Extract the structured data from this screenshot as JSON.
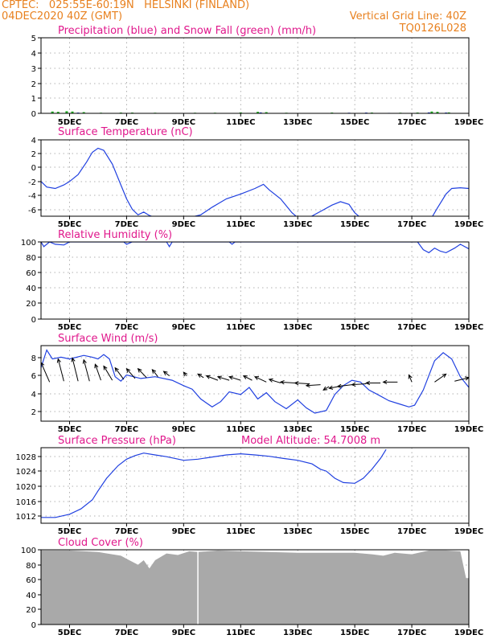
{
  "header": {
    "line1_left": "CPTEC:   025:55E-60:19N   HELSINKI (FINLAND)",
    "line2_left": "04DEC2020 40Z (GMT)",
    "line2_right": "Vertical Grid Line: 40Z",
    "line3_right": "TQ0126L028"
  },
  "colors": {
    "header": "#e8801e",
    "title": "#e0188c",
    "line": "#2040e0",
    "snow": "#20b020",
    "cloud": "#a9a9a9",
    "grid": "#999999",
    "arrow": "#000000"
  },
  "x_tick_labels": [
    "5DEC",
    "7DEC",
    "9DEC",
    "11DEC",
    "13DEC",
    "15DEC",
    "17DEC",
    "19DEC"
  ],
  "chart_data": [
    {
      "type": "bar",
      "title": "Precipitation (blue) and Snow Fall (green) (mm/h)",
      "x_day_range": [
        4,
        19
      ],
      "ylim": [
        0,
        5
      ],
      "yticks": [
        "5",
        "4",
        "3",
        "2",
        "1",
        "0"
      ],
      "series": [
        {
          "name": "Precipitation",
          "color": "#2040e0",
          "values": [
            [
              4.4,
              0.08
            ],
            [
              4.9,
              0.1
            ],
            [
              5.3,
              0.05
            ],
            [
              10.5,
              0.02
            ],
            [
              11.7,
              0.06
            ],
            [
              14.8,
              0.04
            ],
            [
              15.4,
              0.05
            ],
            [
              16.2,
              0.03
            ],
            [
              17.6,
              0.06
            ],
            [
              18.2,
              0.05
            ]
          ]
        },
        {
          "name": "Snow Fall",
          "color": "#20b020",
          "values": [
            [
              4.4,
              0.12
            ],
            [
              4.6,
              0.1
            ],
            [
              4.9,
              0.14
            ],
            [
              5.1,
              0.12
            ],
            [
              5.5,
              0.08
            ],
            [
              6.1,
              0.04
            ],
            [
              6.8,
              0.05
            ],
            [
              7.2,
              0.05
            ],
            [
              8.0,
              0.04
            ],
            [
              9.4,
              0.04
            ],
            [
              10.1,
              0.04
            ],
            [
              11.0,
              0.06
            ],
            [
              11.6,
              0.1
            ],
            [
              11.9,
              0.08
            ],
            [
              12.6,
              0.04
            ],
            [
              14.2,
              0.05
            ],
            [
              15.6,
              0.05
            ],
            [
              16.6,
              0.04
            ],
            [
              17.2,
              0.05
            ],
            [
              17.7,
              0.12
            ],
            [
              17.9,
              0.1
            ],
            [
              18.3,
              0.06
            ]
          ]
        }
      ]
    },
    {
      "type": "line",
      "title": "Surface Temperature (nC)",
      "x_day_range": [
        4,
        19
      ],
      "ylim": [
        -7,
        4
      ],
      "yticks": [
        "4",
        "2",
        "0",
        "-2",
        "-4",
        "-6"
      ],
      "series": [
        {
          "name": "Surface Temperature",
          "color": "#2040e0",
          "points": [
            [
              4.0,
              -2.0
            ],
            [
              4.2,
              -2.8
            ],
            [
              4.5,
              -3.0
            ],
            [
              4.8,
              -2.5
            ],
            [
              5.0,
              -2.0
            ],
            [
              5.3,
              -1.0
            ],
            [
              5.6,
              0.8
            ],
            [
              5.8,
              2.2
            ],
            [
              6.0,
              2.8
            ],
            [
              6.2,
              2.5
            ],
            [
              6.5,
              0.5
            ],
            [
              6.8,
              -2.5
            ],
            [
              7.0,
              -4.5
            ],
            [
              7.2,
              -6.0
            ],
            [
              7.4,
              -6.8
            ],
            [
              7.6,
              -6.4
            ],
            [
              7.8,
              -6.9
            ],
            [
              8.0,
              -7.2
            ],
            [
              9.2,
              -7.2
            ],
            [
              9.6,
              -6.8
            ],
            [
              10.0,
              -5.7
            ],
            [
              10.5,
              -4.5
            ],
            [
              11.0,
              -3.8
            ],
            [
              11.5,
              -3.0
            ],
            [
              11.8,
              -2.4
            ],
            [
              12.0,
              -3.2
            ],
            [
              12.4,
              -4.5
            ],
            [
              12.8,
              -6.5
            ],
            [
              13.0,
              -7.2
            ],
            [
              13.4,
              -7.2
            ],
            [
              13.8,
              -6.3
            ],
            [
              14.2,
              -5.4
            ],
            [
              14.5,
              -4.9
            ],
            [
              14.8,
              -5.3
            ],
            [
              15.0,
              -6.5
            ],
            [
              15.2,
              -7.2
            ],
            [
              17.7,
              -7.2
            ],
            [
              17.9,
              -5.8
            ],
            [
              18.2,
              -3.8
            ],
            [
              18.4,
              -3.0
            ],
            [
              18.7,
              -2.9
            ],
            [
              19.0,
              -3.0
            ]
          ]
        }
      ]
    },
    {
      "type": "line",
      "title": "Relative Humidity (%)",
      "x_day_range": [
        4,
        19
      ],
      "ylim": [
        0,
        100
      ],
      "yticks": [
        "100",
        "80",
        "60",
        "40",
        "20",
        "0"
      ],
      "series": [
        {
          "name": "Relative Humidity",
          "color": "#2040e0",
          "points": [
            [
              4.0,
              100
            ],
            [
              4.1,
              94
            ],
            [
              4.3,
              100
            ],
            [
              4.5,
              97
            ],
            [
              4.8,
              96
            ],
            [
              5.0,
              100
            ],
            [
              6.9,
              100
            ],
            [
              7.0,
              97
            ],
            [
              7.2,
              100
            ],
            [
              8.4,
              100
            ],
            [
              8.5,
              94
            ],
            [
              8.6,
              100
            ],
            [
              10.6,
              100
            ],
            [
              10.7,
              97
            ],
            [
              10.8,
              100
            ],
            [
              17.2,
              100
            ],
            [
              17.4,
              90
            ],
            [
              17.6,
              86
            ],
            [
              17.8,
              92
            ],
            [
              18.0,
              88
            ],
            [
              18.2,
              86
            ],
            [
              18.5,
              92
            ],
            [
              18.7,
              97
            ],
            [
              19.0,
              91
            ]
          ]
        }
      ]
    },
    {
      "type": "line",
      "title": "Surface Wind (m/s)",
      "x_day_range": [
        4,
        19
      ],
      "ylim": [
        1,
        9.5
      ],
      "yticks": [
        "8",
        "6",
        "4",
        "2"
      ],
      "series": [
        {
          "name": "Surface Wind",
          "color": "#2040e0",
          "points": [
            [
              4.0,
              7.0
            ],
            [
              4.2,
              9.0
            ],
            [
              4.4,
              8.0
            ],
            [
              4.7,
              8.2
            ],
            [
              5.0,
              8.0
            ],
            [
              5.5,
              8.4
            ],
            [
              5.8,
              8.2
            ],
            [
              6.0,
              8.0
            ],
            [
              6.2,
              8.5
            ],
            [
              6.4,
              8.0
            ],
            [
              6.6,
              6.0
            ],
            [
              6.8,
              5.5
            ],
            [
              7.0,
              6.2
            ],
            [
              7.5,
              5.8
            ],
            [
              8.0,
              6.0
            ],
            [
              8.6,
              5.6
            ],
            [
              9.0,
              5.0
            ],
            [
              9.3,
              4.6
            ],
            [
              9.6,
              3.5
            ],
            [
              10.0,
              2.6
            ],
            [
              10.3,
              3.2
            ],
            [
              10.6,
              4.3
            ],
            [
              11.0,
              4.0
            ],
            [
              11.3,
              4.8
            ],
            [
              11.6,
              3.5
            ],
            [
              11.9,
              4.2
            ],
            [
              12.2,
              3.2
            ],
            [
              12.6,
              2.4
            ],
            [
              13.0,
              3.4
            ],
            [
              13.3,
              2.5
            ],
            [
              13.6,
              1.9
            ],
            [
              14.0,
              2.2
            ],
            [
              14.3,
              4.0
            ],
            [
              14.6,
              5.0
            ],
            [
              14.9,
              5.6
            ],
            [
              15.2,
              5.4
            ],
            [
              15.5,
              4.5
            ],
            [
              15.8,
              4.0
            ],
            [
              16.2,
              3.3
            ],
            [
              16.6,
              2.9
            ],
            [
              16.9,
              2.6
            ],
            [
              17.1,
              2.8
            ],
            [
              17.4,
              4.5
            ],
            [
              17.8,
              7.8
            ],
            [
              18.1,
              8.7
            ],
            [
              18.4,
              8.0
            ],
            [
              18.7,
              6.0
            ],
            [
              19.0,
              4.8
            ]
          ]
        }
      ],
      "wind_arrows": [
        [
          4.3,
          5.4,
          4.0,
          7.6
        ],
        [
          4.8,
          5.5,
          4.6,
          8.0
        ],
        [
          5.3,
          5.5,
          5.1,
          8.1
        ],
        [
          5.7,
          5.5,
          5.5,
          7.9
        ],
        [
          6.1,
          5.6,
          5.9,
          7.4
        ],
        [
          6.5,
          5.6,
          6.2,
          7.2
        ],
        [
          6.9,
          5.7,
          6.6,
          7.0
        ],
        [
          7.3,
          5.8,
          7.0,
          6.9
        ],
        [
          7.7,
          5.9,
          7.4,
          6.9
        ],
        [
          8.1,
          6.0,
          7.9,
          6.8
        ],
        [
          8.5,
          6.1,
          8.3,
          6.6
        ],
        [
          9.1,
          6.1,
          9.0,
          6.5
        ],
        [
          9.7,
          5.9,
          9.5,
          6.3
        ],
        [
          10.2,
          5.6,
          9.8,
          6.1
        ],
        [
          10.6,
          5.6,
          10.2,
          6.0
        ],
        [
          11.0,
          5.6,
          10.6,
          6.0
        ],
        [
          11.4,
          5.6,
          11.1,
          6.1
        ],
        [
          11.9,
          5.4,
          11.5,
          6.0
        ],
        [
          12.4,
          5.3,
          12.0,
          5.7
        ],
        [
          12.9,
          5.3,
          12.4,
          5.4
        ],
        [
          13.4,
          5.2,
          12.9,
          5.3
        ],
        [
          13.8,
          5.1,
          13.3,
          5.0
        ],
        [
          14.1,
          4.9,
          13.9,
          4.5
        ],
        [
          14.6,
          5.0,
          14.1,
          4.7
        ],
        [
          14.9,
          5.1,
          14.4,
          4.9
        ],
        [
          15.4,
          5.2,
          14.9,
          5.1
        ],
        [
          15.9,
          5.3,
          15.4,
          5.3
        ],
        [
          16.5,
          5.4,
          16.0,
          5.4
        ],
        [
          17.0,
          5.4,
          16.9,
          6.2
        ],
        [
          17.8,
          5.4,
          18.2,
          6.3
        ],
        [
          18.5,
          5.5,
          19.0,
          5.9
        ]
      ]
    },
    {
      "type": "line",
      "title": "Surface Pressure (hPa)",
      "subtitle": "Model Altitude: 54.7008 m",
      "x_day_range": [
        4,
        19
      ],
      "ylim": [
        1010,
        1031
      ],
      "yticks": [
        "1028",
        "1024",
        "1020",
        "1016",
        "1012"
      ],
      "series": [
        {
          "name": "Surface Pressure",
          "color": "#2040e0",
          "points": [
            [
              4.0,
              1011.6
            ],
            [
              4.5,
              1011.6
            ],
            [
              5.0,
              1012.5
            ],
            [
              5.4,
              1014.0
            ],
            [
              5.8,
              1016.5
            ],
            [
              6.0,
              1019.0
            ],
            [
              6.3,
              1022.5
            ],
            [
              6.7,
              1026.0
            ],
            [
              7.0,
              1027.8
            ],
            [
              7.3,
              1028.8
            ],
            [
              7.6,
              1029.5
            ],
            [
              8.0,
              1029.0
            ],
            [
              8.4,
              1028.5
            ],
            [
              8.7,
              1028.0
            ],
            [
              9.0,
              1027.5
            ],
            [
              9.5,
              1027.8
            ],
            [
              10.0,
              1028.4
            ],
            [
              10.5,
              1029.0
            ],
            [
              11.0,
              1029.3
            ],
            [
              11.5,
              1029.0
            ],
            [
              12.0,
              1028.6
            ],
            [
              12.5,
              1028.0
            ],
            [
              13.0,
              1027.5
            ],
            [
              13.5,
              1026.5
            ],
            [
              13.8,
              1025.0
            ],
            [
              14.0,
              1024.5
            ],
            [
              14.3,
              1022.5
            ],
            [
              14.6,
              1021.3
            ],
            [
              15.0,
              1021.1
            ],
            [
              15.3,
              1022.5
            ],
            [
              15.6,
              1025.0
            ],
            [
              15.9,
              1028.0
            ],
            [
              16.1,
              1030.5
            ]
          ]
        }
      ]
    },
    {
      "type": "area",
      "title": "Cloud Cover (%)",
      "x_day_range": [
        4,
        19
      ],
      "ylim": [
        0,
        100
      ],
      "yticks": [
        "100",
        "80",
        "60",
        "40",
        "20",
        "0"
      ],
      "series": [
        {
          "name": "Cloud Cover",
          "color": "#a9a9a9",
          "points": [
            [
              4.0,
              99
            ],
            [
              5.0,
              99
            ],
            [
              6.0,
              97
            ],
            [
              6.8,
              92
            ],
            [
              7.0,
              88
            ],
            [
              7.4,
              80
            ],
            [
              7.6,
              86
            ],
            [
              7.8,
              75
            ],
            [
              8.0,
              86
            ],
            [
              8.4,
              95
            ],
            [
              8.8,
              93
            ],
            [
              9.2,
              98
            ],
            [
              9.5,
              97
            ],
            [
              10.2,
              99
            ],
            [
              11.0,
              98
            ],
            [
              12.0,
              97
            ],
            [
              13.0,
              96
            ],
            [
              14.0,
              96
            ],
            [
              15.0,
              96
            ],
            [
              15.6,
              94
            ],
            [
              16.0,
              92
            ],
            [
              16.4,
              96
            ],
            [
              17.0,
              94
            ],
            [
              17.6,
              99
            ],
            [
              18.2,
              99
            ],
            [
              18.7,
              98
            ],
            [
              18.9,
              62
            ],
            [
              19.0,
              62
            ]
          ]
        }
      ]
    }
  ]
}
